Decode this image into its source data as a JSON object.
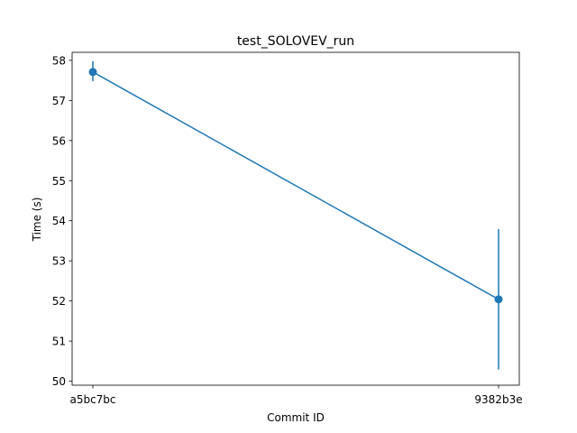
{
  "chart_data": {
    "type": "line",
    "title": "test_SOLOVEV_run",
    "xlabel": "Commit ID",
    "ylabel": "Time (s)",
    "categories": [
      "a5bc7bc",
      "9382b3e"
    ],
    "series": [
      {
        "values": [
          57.71,
          52.04
        ],
        "error_low": [
          57.48,
          50.29
        ],
        "error_high": [
          57.98,
          53.79
        ],
        "color": "#1f77b4"
      }
    ],
    "ylim": [
      49.9,
      58.2
    ],
    "yticks": [
      50,
      51,
      52,
      53,
      54,
      55,
      56,
      57,
      58
    ],
    "grid": false,
    "error_bars": true
  }
}
